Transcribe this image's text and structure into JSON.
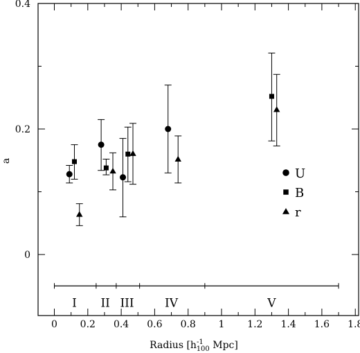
{
  "chart_data": {
    "type": "scatter",
    "title": "",
    "xlabel": "Radius [h",
    "xlabel_sup": "-1",
    "xlabel_sub": "100",
    "xlabel_tail": " Mpc]",
    "ylabel": "a",
    "xlim": [
      -0.1,
      1.8
    ],
    "ylim": [
      -0.05,
      0.4
    ],
    "xticks": [
      "0",
      "0.2",
      "0.4",
      "0.6",
      "0.8",
      "1",
      "1.2",
      "1.4",
      "1.6",
      "1.8"
    ],
    "yticks": [
      "0",
      "0.2",
      "0.4"
    ],
    "grid": false,
    "legend_position": "right",
    "series": [
      {
        "name": "U",
        "marker": "circle",
        "points": [
          {
            "x": 0.09,
            "y": 0.128,
            "lo": 0.114,
            "hi": 0.142
          },
          {
            "x": 0.28,
            "y": 0.175,
            "lo": 0.134,
            "hi": 0.215
          },
          {
            "x": 0.41,
            "y": 0.123,
            "lo": 0.06,
            "hi": 0.185
          },
          {
            "x": 0.68,
            "y": 0.2,
            "lo": 0.13,
            "hi": 0.27
          }
        ]
      },
      {
        "name": "B",
        "marker": "square",
        "points": [
          {
            "x": 0.12,
            "y": 0.148,
            "lo": 0.12,
            "hi": 0.175
          },
          {
            "x": 0.31,
            "y": 0.138,
            "lo": 0.127,
            "hi": 0.152
          },
          {
            "x": 0.44,
            "y": 0.16,
            "lo": 0.116,
            "hi": 0.203
          },
          {
            "x": 1.3,
            "y": 0.252,
            "lo": 0.181,
            "hi": 0.321
          }
        ]
      },
      {
        "name": "r",
        "marker": "triangle",
        "points": [
          {
            "x": 0.15,
            "y": 0.064,
            "lo": 0.046,
            "hi": 0.081
          },
          {
            "x": 0.35,
            "y": 0.133,
            "lo": 0.103,
            "hi": 0.162
          },
          {
            "x": 0.47,
            "y": 0.161,
            "lo": 0.112,
            "hi": 0.209
          },
          {
            "x": 0.74,
            "y": 0.152,
            "lo": 0.114,
            "hi": 0.189
          },
          {
            "x": 1.33,
            "y": 0.231,
            "lo": 0.173,
            "hi": 0.287
          }
        ]
      }
    ],
    "regions": {
      "y": -0.05,
      "boundaries": [
        0,
        0.25,
        0.37,
        0.51,
        0.9,
        1.7
      ],
      "labels": [
        {
          "text": "I",
          "x": 0.12
        },
        {
          "text": "II",
          "x": 0.305
        },
        {
          "text": "III",
          "x": 0.435
        },
        {
          "text": "IV",
          "x": 0.7
        },
        {
          "text": "V",
          "x": 1.3
        }
      ]
    }
  }
}
